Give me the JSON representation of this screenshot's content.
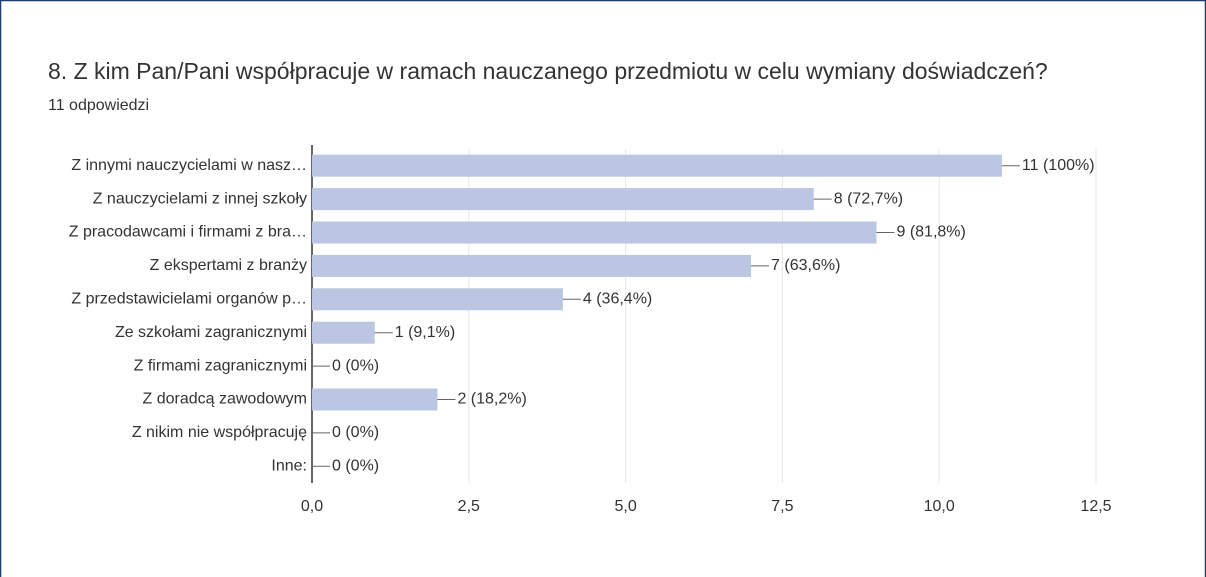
{
  "chart_data": {
    "type": "barh",
    "title": "8. Z kim Pan/Pani współpracuje w ramach nauczanego przedmiotu w celu wymiany doświadczeń?",
    "subtitle": "11 odpowiedzi",
    "categories": [
      "Z innymi nauczycielami w nasz…",
      "Z nauczycielami z innej szkoły",
      "Z pracodawcami i firmami z bra…",
      "Z ekspertami z branży",
      "Z przedstawicielami organów p…",
      "Ze szkołami zagranicznymi",
      "Z firmami zagranicznymi",
      "Z doradcą zawodowym",
      "Z nikim nie współpracuję",
      "Inne:"
    ],
    "values": [
      11,
      8,
      9,
      7,
      4,
      1,
      0,
      2,
      0,
      0
    ],
    "value_labels": [
      "11 (100%)",
      "8 (72,7%)",
      "9 (81,8%)",
      "7 (63,6%)",
      "4 (36,4%)",
      "1 (9,1%)",
      "0 (0%)",
      "2 (18,2%)",
      "0 (0%)",
      "0 (0%)"
    ],
    "color": "#bac6e2",
    "xlim": [
      0,
      12.5
    ],
    "xticks": [
      {
        "value": 0,
        "label": "0,0"
      },
      {
        "value": 2.5,
        "label": "2,5"
      },
      {
        "value": 5,
        "label": "5,0"
      },
      {
        "value": 7.5,
        "label": "7,5"
      },
      {
        "value": 10,
        "label": "10,0"
      },
      {
        "value": 12.5,
        "label": "12,5"
      }
    ],
    "grid": true
  }
}
